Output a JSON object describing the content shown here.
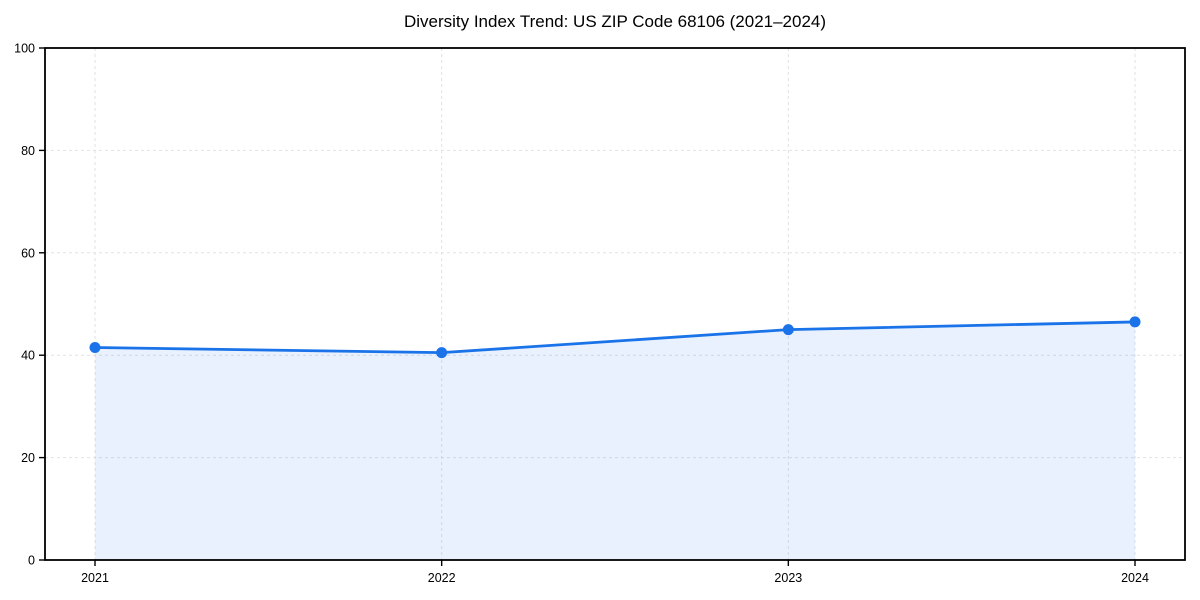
{
  "chart_data": {
    "type": "line",
    "title": "Diversity Index Trend: US ZIP Code 68106 (2021–2024)",
    "categories": [
      "2021",
      "2022",
      "2023",
      "2024"
    ],
    "series": [
      {
        "name": "Diversity Index",
        "values": [
          41.5,
          40.5,
          45.0,
          46.5
        ]
      }
    ],
    "xlabel": "",
    "ylabel": "",
    "ylim": [
      0,
      100
    ],
    "yticks": [
      0,
      20,
      40,
      60,
      80,
      100
    ],
    "grid": "dashed",
    "legend_position": "none",
    "area_fill": true,
    "colors": {
      "line": "#1a73e8",
      "marker": "#1a73e8",
      "area_fill": "rgba(26,115,232,0.10)",
      "grid": "#e2e2e2",
      "spine": "#000000",
      "title": "#000000",
      "tick_label": "#000000"
    }
  }
}
